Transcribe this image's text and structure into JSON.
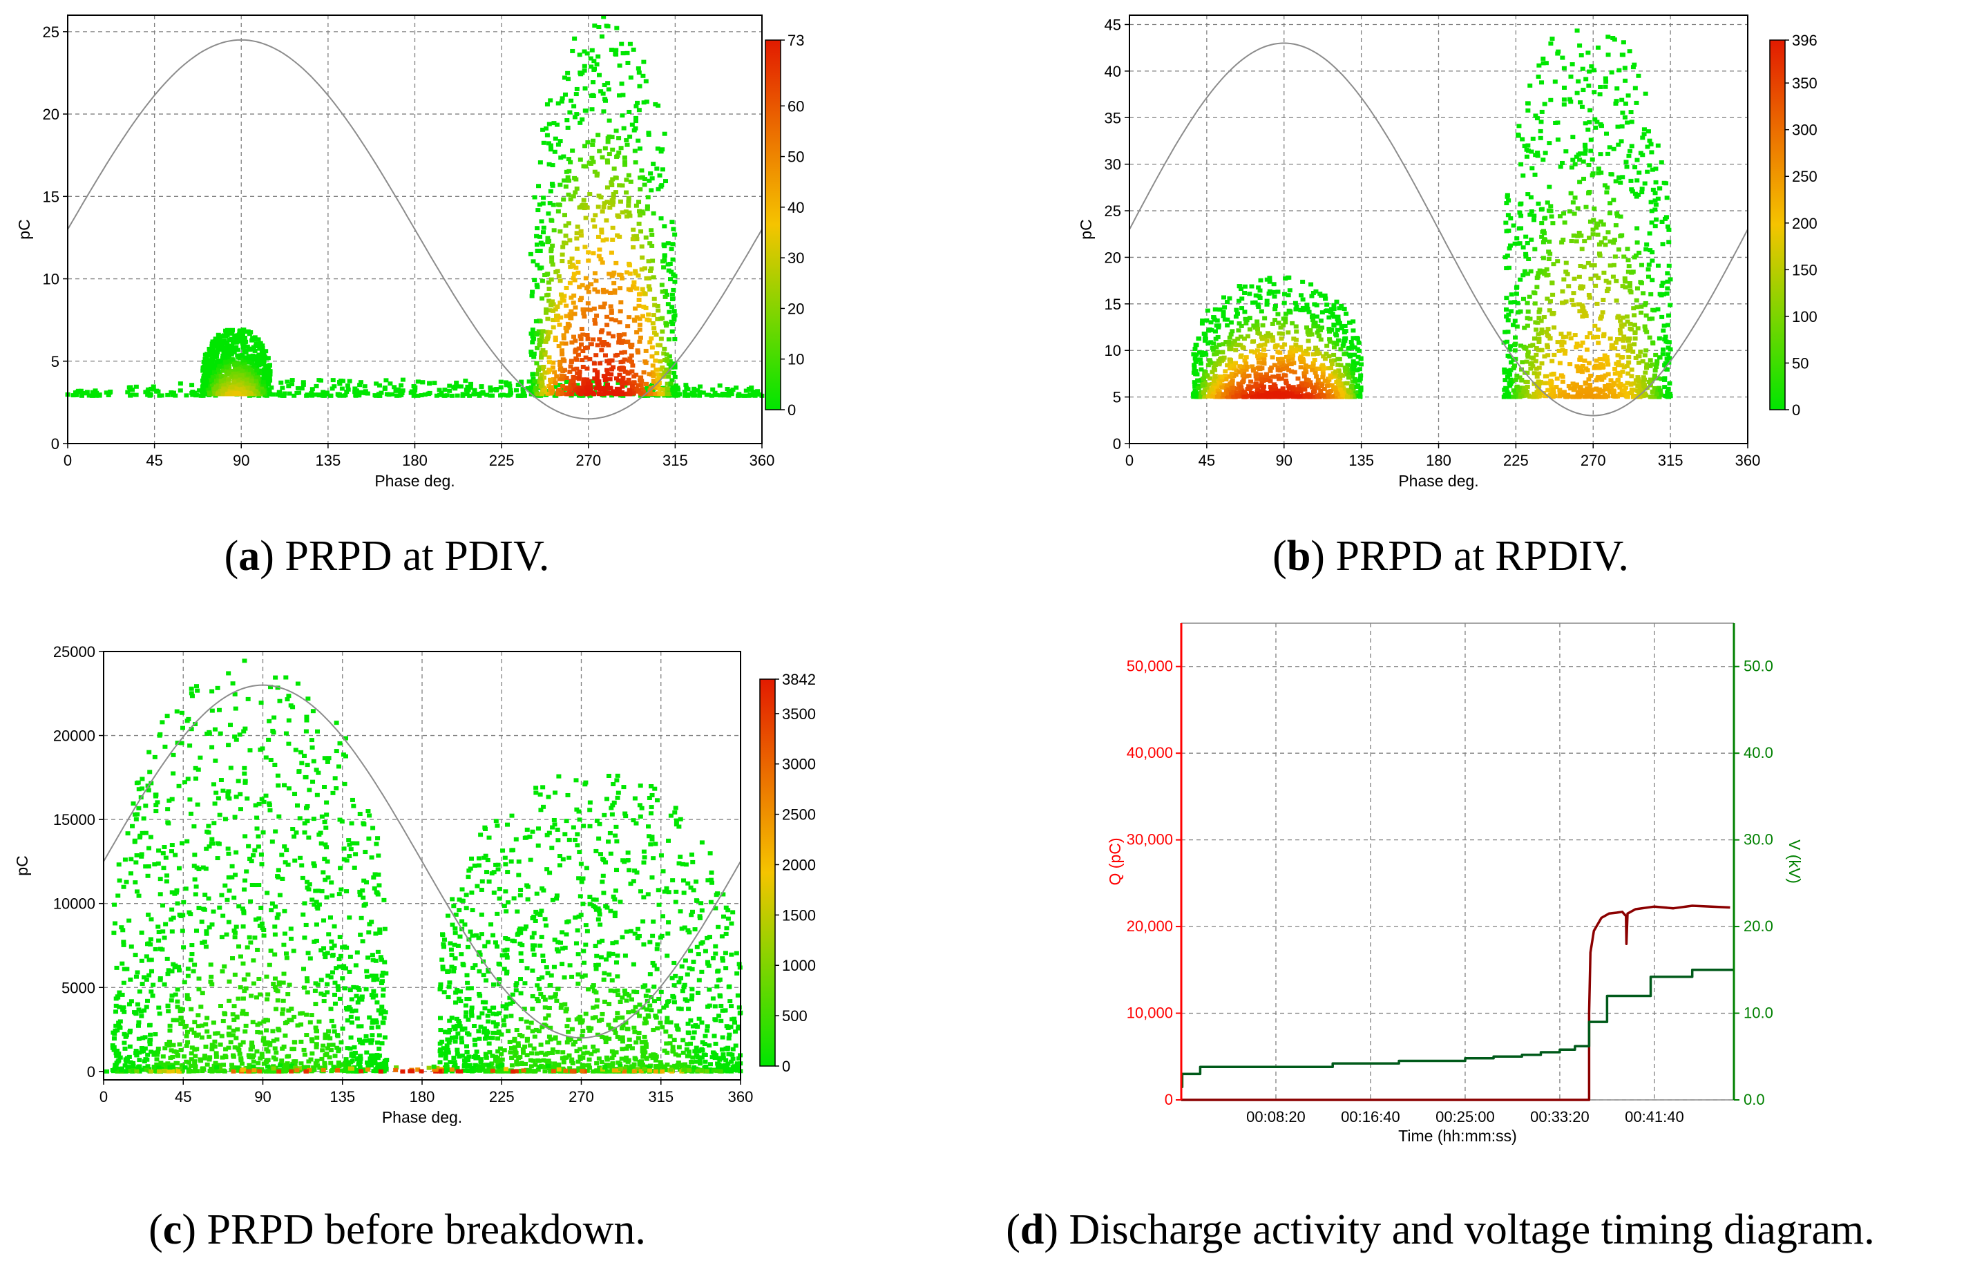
{
  "captions": {
    "a": {
      "letter": "a",
      "text": "PRPD at PDIV."
    },
    "b": {
      "letter": "b",
      "text": "PRPD at RPDIV."
    },
    "c": {
      "letter": "c",
      "text": "PRPD before breakdown."
    },
    "d": {
      "letter": "d",
      "text": "Discharge activity and voltage timing diagram."
    }
  },
  "colors": {
    "grid": "#7f7f7f",
    "sine": "#8c8c8c",
    "low": "#00e600",
    "mid": "#f5c400",
    "high": "#e21b00",
    "charge_line": "#8b0000",
    "voltage_line": "#005a1a",
    "left_axis": "#ff0000",
    "right_axis": "#008000"
  },
  "chart_data": [
    {
      "id": "a",
      "type": "heatmap",
      "title": "PRPD at PDIV.",
      "xlabel": "Phase deg.",
      "ylabel": "pC",
      "xlim": [
        0,
        360
      ],
      "ylim": [
        0,
        26
      ],
      "xticks": [
        "0",
        "45",
        "90",
        "135",
        "180",
        "225",
        "270",
        "315",
        "360"
      ],
      "yticks": [
        "0",
        "5",
        "10",
        "15",
        "20",
        "25"
      ],
      "colorbar": {
        "max_label": "73",
        "ticks": [
          "0",
          "10",
          "20",
          "30",
          "40",
          "50",
          "60",
          "73"
        ]
      },
      "sine": {
        "mid": 13,
        "amp": 11.5
      },
      "clusters": [
        {
          "phase": [
            0,
            360
          ],
          "q": [
            2.9,
            3.9
          ],
          "peak": 0.25
        },
        {
          "phase": [
            70,
            105
          ],
          "q": [
            3,
            7
          ],
          "peak": 0.6
        },
        {
          "phase": [
            240,
            315
          ],
          "q": [
            3,
            26
          ],
          "peak": 1.0
        }
      ]
    },
    {
      "id": "b",
      "type": "heatmap",
      "title": "PRPD at RPDIV.",
      "xlabel": "Phase deg.",
      "ylabel": "pC",
      "xlim": [
        0,
        360
      ],
      "ylim": [
        0,
        46
      ],
      "xticks": [
        "0",
        "45",
        "90",
        "135",
        "180",
        "225",
        "270",
        "315",
        "360"
      ],
      "yticks": [
        "0",
        "5",
        "10",
        "15",
        "20",
        "25",
        "30",
        "35",
        "40",
        "45"
      ],
      "colorbar": {
        "max_label": "396",
        "ticks": [
          "0",
          "50",
          "100",
          "150",
          "200",
          "250",
          "300",
          "350",
          "396"
        ]
      },
      "sine": {
        "mid": 23,
        "amp": 20
      },
      "clusters": [
        {
          "phase": [
            37,
            135
          ],
          "q": [
            5,
            18
          ],
          "peak": 1.0
        },
        {
          "phase": [
            218,
            315
          ],
          "q": [
            5,
            46
          ],
          "peak": 0.7
        }
      ]
    },
    {
      "id": "c",
      "type": "heatmap",
      "title": "PRPD before breakdown.",
      "xlabel": "Phase deg.",
      "ylabel": "pC",
      "xlim": [
        0,
        360
      ],
      "ylim": [
        -500,
        25000
      ],
      "xticks": [
        "0",
        "45",
        "90",
        "135",
        "180",
        "225",
        "270",
        "315",
        "360"
      ],
      "yticks": [
        "0",
        "5000",
        "10000",
        "15000",
        "20000",
        "25000"
      ],
      "colorbar": {
        "max_label": "3842",
        "ticks": [
          "0",
          "500",
          "1000",
          "1500",
          "2000",
          "2500",
          "3000",
          "3500",
          "3842"
        ]
      },
      "sine": {
        "mid": 12500,
        "amp": 10500
      },
      "clusters": [
        {
          "phase": [
            5,
            160
          ],
          "q": [
            0,
            24500
          ],
          "peak": 0.4
        },
        {
          "phase": [
            190,
            360
          ],
          "q": [
            0,
            18000
          ],
          "peak": 0.4
        },
        {
          "phase": [
            0,
            360
          ],
          "q": [
            0,
            400
          ],
          "peak": 1.0
        }
      ]
    },
    {
      "id": "d",
      "type": "line",
      "title": "Discharge activity and voltage timing diagram.",
      "xlabel": "Time (hh:mm:ss)",
      "ylabel": "Q (pC)",
      "y2label": "V (kV)",
      "xlim_seconds": [
        0,
        2920
      ],
      "xticks": [
        "00:08:20",
        "00:16:40",
        "00:25:00",
        "00:33:20",
        "00:41:40"
      ],
      "xtick_seconds": [
        500,
        1000,
        1500,
        2000,
        2500
      ],
      "ylim": [
        0,
        55000
      ],
      "yticks": [
        "0",
        "10,000",
        "20,000",
        "30,000",
        "40,000",
        "50,000"
      ],
      "y2lim": [
        0,
        55
      ],
      "y2ticks": [
        "0.0",
        "10.0",
        "20.0",
        "30.0",
        "40.0",
        "50.0"
      ],
      "series": [
        {
          "name": "Q (pC)",
          "axis": "left",
          "color": "#8b0000",
          "x": [
            0,
            2155,
            2155,
            2162,
            2180,
            2220,
            2260,
            2300,
            2330,
            2350,
            2352,
            2358,
            2400,
            2500,
            2600,
            2700,
            2800,
            2900
          ],
          "y": [
            0,
            0,
            10000,
            17000,
            19500,
            21000,
            21500,
            21600,
            21700,
            21200,
            18000,
            21500,
            22000,
            22300,
            22100,
            22400,
            22300,
            22200
          ]
        },
        {
          "name": "V (kV)",
          "axis": "right",
          "color": "#005a1a",
          "x": [
            0,
            5,
            5,
            100,
            100,
            800,
            800,
            1150,
            1150,
            1500,
            1500,
            1650,
            1650,
            1800,
            1800,
            1900,
            1900,
            2000,
            2000,
            2080,
            2080,
            2155,
            2155,
            2250,
            2250,
            2480,
            2480,
            2700,
            2700,
            2920
          ],
          "y": [
            1.5,
            1.5,
            3.0,
            3.0,
            3.8,
            3.8,
            4.2,
            4.2,
            4.5,
            4.5,
            4.8,
            4.8,
            5.0,
            5.0,
            5.2,
            5.2,
            5.5,
            5.5,
            5.8,
            5.8,
            6.2,
            6.2,
            9.0,
            9.0,
            12.0,
            12.0,
            14.2,
            14.2,
            15.0,
            15.0
          ]
        }
      ]
    }
  ]
}
